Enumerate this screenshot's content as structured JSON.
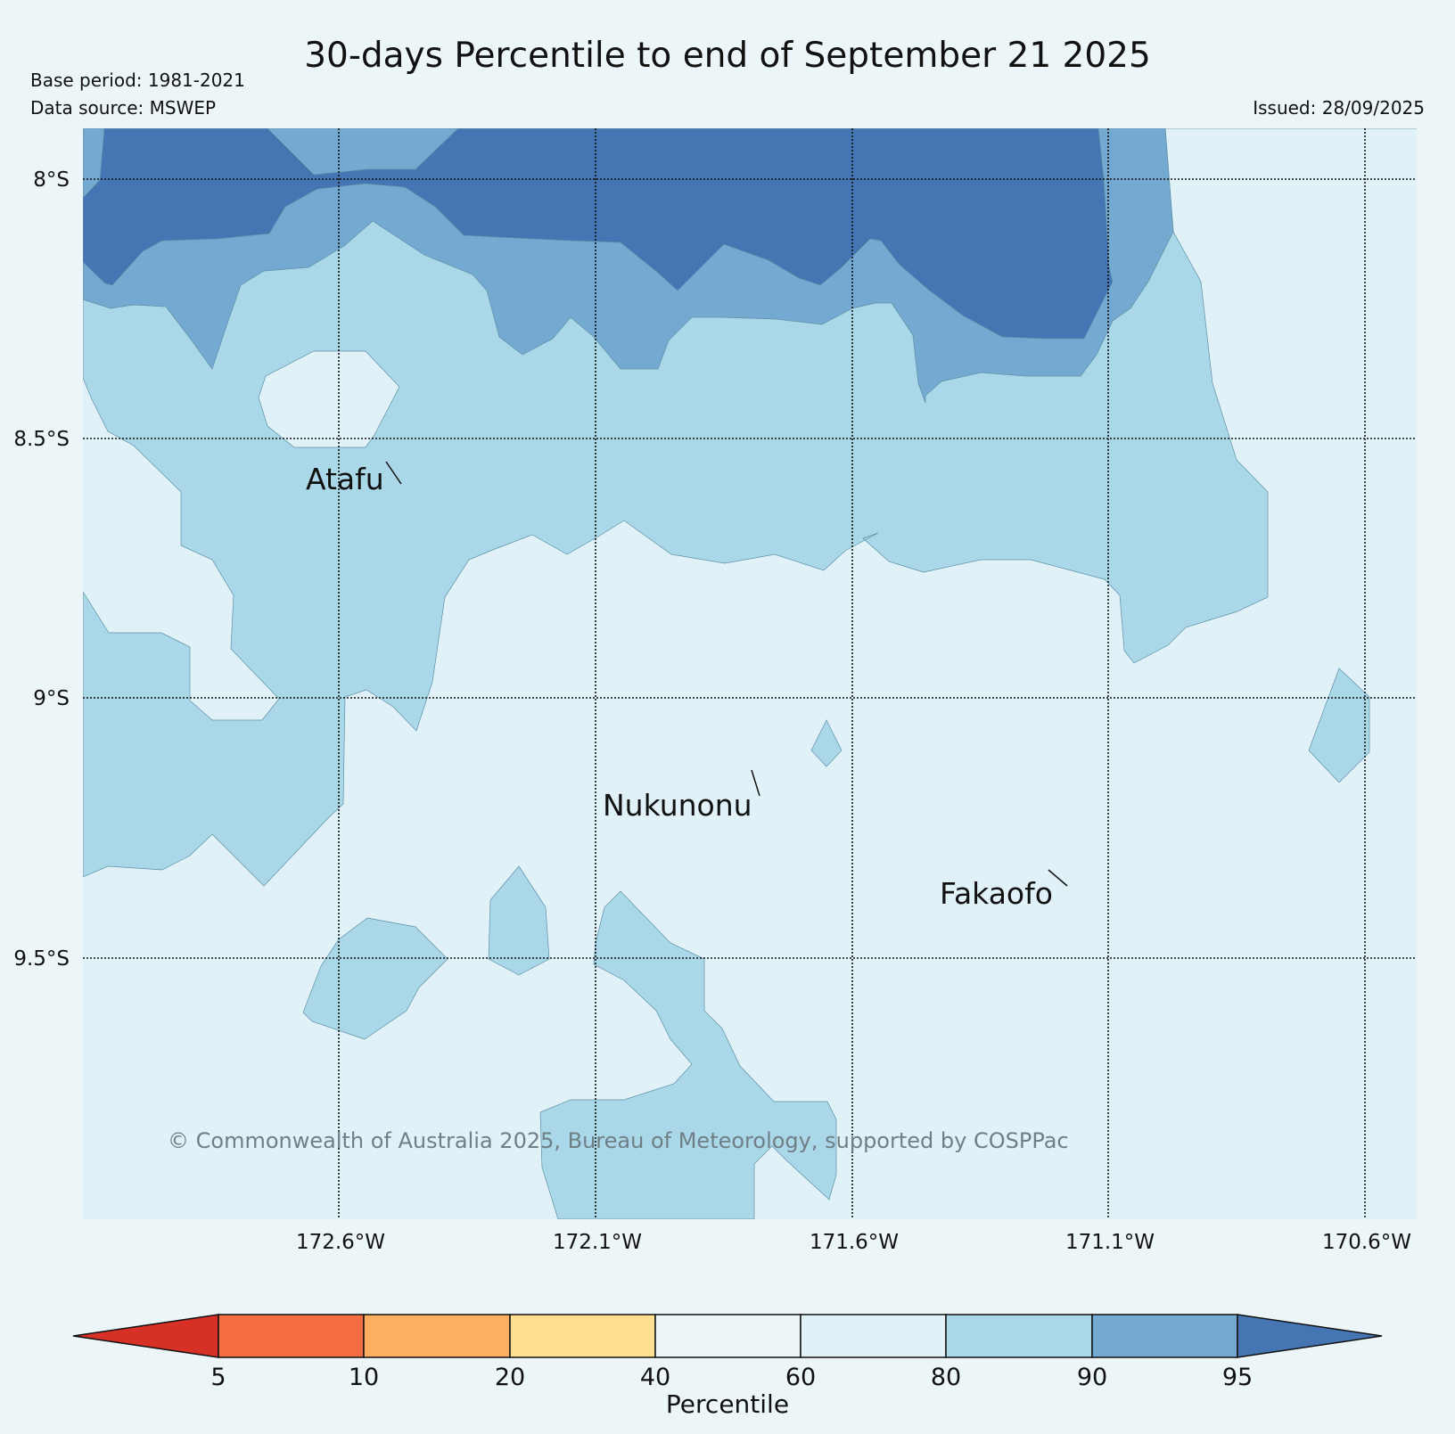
{
  "header": {
    "title": "30-days Percentile to end of September 21 2025",
    "base_period": "Base period: 1981-2021",
    "data_source": "Data source: MSWEP",
    "issued": "Issued: 28/09/2025"
  },
  "map": {
    "lat_labels": [
      "8°S",
      "8.5°S",
      "9°S",
      "9.5°S"
    ],
    "lon_labels": [
      "172.6°W",
      "172.1°W",
      "171.6°W",
      "171.1°W",
      "170.6°W"
    ],
    "places": [
      "Atafu",
      "Nukunonu",
      "Fakaofo"
    ],
    "copyright": "© Commonwealth of Australia 2025, Bureau of Meteorology, supported by COSPPac",
    "colors": {
      "p60_80": "#e0f2f8",
      "p80_90": "#abd8e8",
      "p90_95": "#74aad1",
      "p95_plus": "#4575b3"
    }
  },
  "colorbar": {
    "title": "Percentile",
    "ticks": [
      "5",
      "10",
      "20",
      "40",
      "60",
      "80",
      "90",
      "95"
    ],
    "colors": [
      "#d73027",
      "#f46d43",
      "#fdae61",
      "#fee090",
      "#ecf6f8",
      "#e0f2f8",
      "#abd8e8",
      "#74aad1",
      "#4575b3"
    ]
  }
}
